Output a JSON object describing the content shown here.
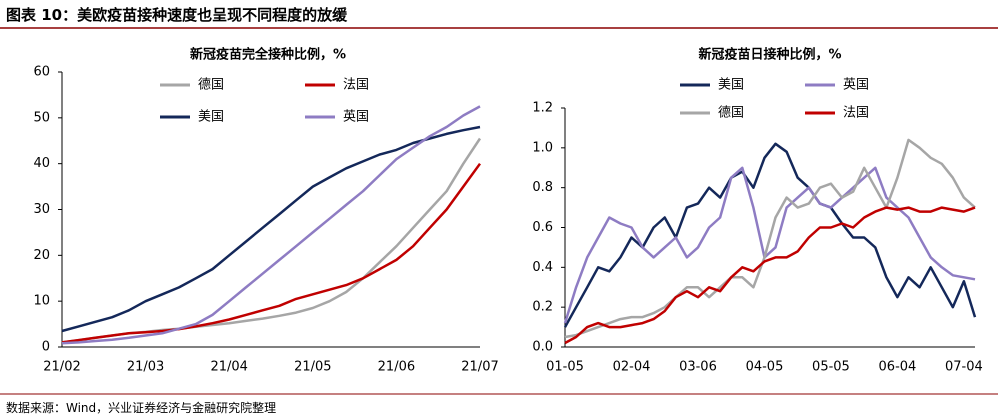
{
  "header": {
    "title": "图表 10：美欧疫苗接种速度也呈现不同程度的放缓"
  },
  "source": "数据来源：Wind，兴业证券经济与金融研究院整理",
  "chart_data": [
    {
      "type": "line",
      "title": "新冠疫苗完全接种比例，%",
      "categories": [
        "21/02",
        null,
        null,
        null,
        null,
        "21/03",
        null,
        null,
        null,
        null,
        "21/04",
        null,
        null,
        null,
        null,
        "21/05",
        null,
        null,
        null,
        null,
        "21/06",
        null,
        null,
        null,
        null,
        "21/07"
      ],
      "series": [
        {
          "name": "德国",
          "color": "#a6a6a6",
          "values": [
            1,
            1.5,
            2,
            2.5,
            3,
            3.3,
            3.7,
            4,
            4.4,
            4.8,
            5.2,
            5.7,
            6.2,
            6.8,
            7.5,
            8.5,
            10,
            12,
            15,
            18.5,
            22,
            26,
            30,
            34,
            40,
            45.5
          ]
        },
        {
          "name": "法国",
          "color": "#c00000",
          "values": [
            1,
            1.5,
            2,
            2.5,
            3,
            3.2,
            3.5,
            3.9,
            4.5,
            5.2,
            6,
            7,
            8,
            9,
            10.5,
            11.5,
            12.5,
            13.5,
            15,
            17,
            19,
            22,
            26,
            30,
            35,
            40
          ]
        },
        {
          "name": "美国",
          "color": "#14285a",
          "values": [
            3.5,
            4.5,
            5.5,
            6.5,
            8,
            10,
            11.5,
            13,
            15,
            17,
            20,
            23,
            26,
            29,
            32,
            35,
            37,
            39,
            40.5,
            42,
            43,
            44.5,
            45.5,
            46.5,
            47.3,
            48
          ]
        },
        {
          "name": "英国",
          "color": "#8e7cc3",
          "values": [
            0.8,
            1,
            1.3,
            1.6,
            2,
            2.5,
            3,
            4,
            5,
            7,
            10,
            13,
            16,
            19,
            22,
            25,
            28,
            31,
            34,
            37.5,
            41,
            43.5,
            46,
            48,
            50.5,
            52.5
          ]
        }
      ],
      "ylim": [
        0,
        60
      ],
      "yticks": [
        0,
        10,
        20,
        30,
        40,
        50,
        60
      ]
    },
    {
      "type": "line",
      "title": "新冠疫苗日接种比例，%",
      "categories": [
        "01-05",
        null,
        null,
        null,
        null,
        null,
        "02-04",
        null,
        null,
        null,
        null,
        null,
        "03-06",
        null,
        null,
        null,
        null,
        null,
        "04-05",
        null,
        null,
        null,
        null,
        null,
        "05-05",
        null,
        null,
        null,
        null,
        null,
        "06-04",
        null,
        null,
        null,
        null,
        null,
        "07-04",
        null
      ],
      "series": [
        {
          "name": "美国",
          "color": "#14285a",
          "values": [
            0.1,
            0.2,
            0.3,
            0.4,
            0.38,
            0.45,
            0.55,
            0.5,
            0.6,
            0.65,
            0.55,
            0.7,
            0.72,
            0.8,
            0.75,
            0.85,
            0.88,
            0.8,
            0.95,
            1.02,
            0.98,
            0.85,
            0.8,
            0.72,
            0.7,
            0.62,
            0.55,
            0.55,
            0.5,
            0.35,
            0.25,
            0.35,
            0.3,
            0.4,
            0.3,
            0.2,
            0.33,
            0.15
          ]
        },
        {
          "name": "英国",
          "color": "#8e7cc3",
          "values": [
            0.12,
            0.3,
            0.45,
            0.55,
            0.65,
            0.62,
            0.6,
            0.5,
            0.45,
            0.5,
            0.55,
            0.45,
            0.5,
            0.6,
            0.65,
            0.85,
            0.9,
            0.7,
            0.45,
            0.5,
            0.7,
            0.75,
            0.8,
            0.72,
            0.7,
            0.75,
            0.8,
            0.85,
            0.9,
            0.75,
            0.7,
            0.65,
            0.55,
            0.45,
            0.4,
            0.36,
            0.35,
            0.34
          ]
        },
        {
          "name": "德国",
          "color": "#a6a6a6",
          "values": [
            0.05,
            0.06,
            0.08,
            0.1,
            0.12,
            0.14,
            0.15,
            0.15,
            0.17,
            0.2,
            0.25,
            0.3,
            0.3,
            0.25,
            0.3,
            0.35,
            0.35,
            0.3,
            0.45,
            0.65,
            0.75,
            0.7,
            0.72,
            0.8,
            0.82,
            0.75,
            0.78,
            0.9,
            0.8,
            0.7,
            0.85,
            1.04,
            1.0,
            0.95,
            0.92,
            0.85,
            0.75,
            0.7
          ]
        },
        {
          "name": "法国",
          "color": "#c00000",
          "values": [
            0.02,
            0.05,
            0.1,
            0.12,
            0.1,
            0.1,
            0.11,
            0.12,
            0.14,
            0.18,
            0.25,
            0.28,
            0.25,
            0.3,
            0.28,
            0.35,
            0.4,
            0.38,
            0.43,
            0.45,
            0.45,
            0.48,
            0.55,
            0.6,
            0.6,
            0.62,
            0.6,
            0.65,
            0.68,
            0.7,
            0.69,
            0.7,
            0.68,
            0.68,
            0.7,
            0.69,
            0.68,
            0.7
          ]
        }
      ],
      "ylim": [
        0,
        1.2
      ],
      "yticks": [
        {
          "value": 0,
          "label": "0.0"
        },
        0.2,
        0.4,
        0.6,
        0.8,
        {
          "value": 1,
          "label": "1.0"
        },
        1.2
      ]
    }
  ]
}
